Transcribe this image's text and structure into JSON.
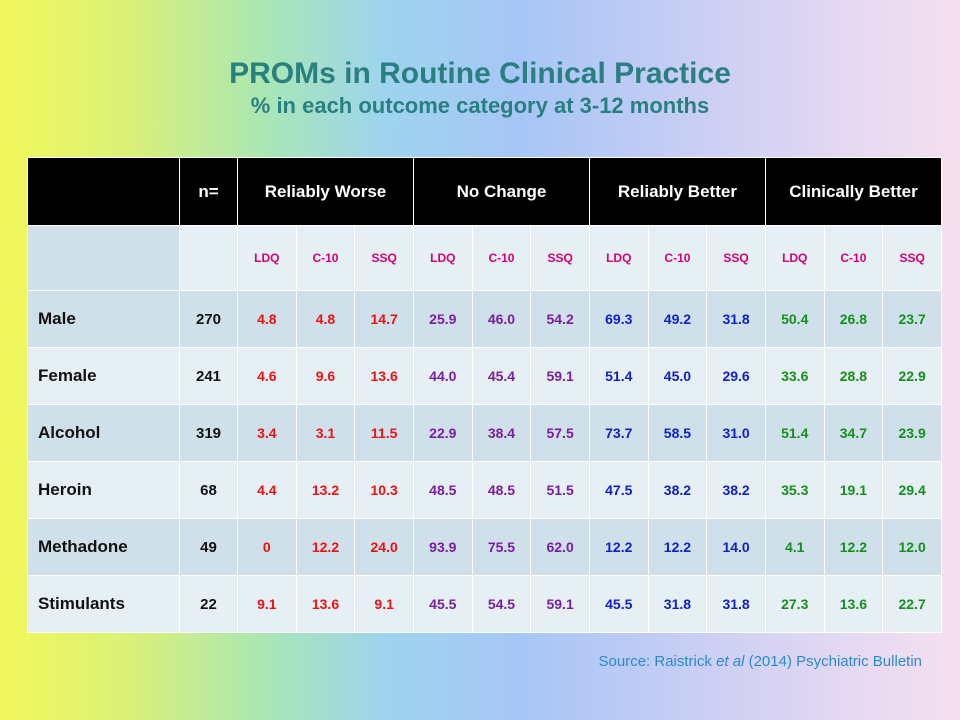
{
  "title": "PROMs in Routine Clinical Practice",
  "subtitle": "% in each outcome category at 3-12 months",
  "table": {
    "n_header": "n=",
    "groups": [
      "Reliably Worse",
      "No Change",
      "Reliably Better",
      "Clinically Better"
    ],
    "measures": [
      "LDQ",
      "C-10",
      "SSQ"
    ],
    "rows": [
      {
        "label": "Male",
        "n": "270",
        "values": [
          "4.8",
          "4.8",
          "14.7",
          "25.9",
          "46.0",
          "54.2",
          "69.3",
          "49.2",
          "31.8",
          "50.4",
          "26.8",
          "23.7"
        ]
      },
      {
        "label": "Female",
        "n": "241",
        "values": [
          "4.6",
          "9.6",
          "13.6",
          "44.0",
          "45.4",
          "59.1",
          "51.4",
          "45.0",
          "29.6",
          "33.6",
          "28.8",
          "22.9"
        ]
      },
      {
        "label": "Alcohol",
        "n": "319",
        "values": [
          "3.4",
          "3.1",
          "11.5",
          "22.9",
          "38.4",
          "57.5",
          "73.7",
          "58.5",
          "31.0",
          "51.4",
          "34.7",
          "23.9"
        ]
      },
      {
        "label": "Heroin",
        "n": "68",
        "values": [
          "4.4",
          "13.2",
          "10.3",
          "48.5",
          "48.5",
          "51.5",
          "47.5",
          "38.2",
          "38.2",
          "35.3",
          "19.1",
          "29.4"
        ]
      },
      {
        "label": "Methadone",
        "n": "49",
        "values": [
          "0",
          "12.2",
          "24.0",
          "93.9",
          "75.5",
          "62.0",
          "12.2",
          "12.2",
          "14.0",
          "4.1",
          "12.2",
          "12.0"
        ]
      },
      {
        "label": "Stimulants",
        "n": "22",
        "values": [
          "9.1",
          "13.6",
          "9.1",
          "45.5",
          "54.5",
          "59.1",
          "45.5",
          "31.8",
          "31.8",
          "27.3",
          "13.6",
          "22.7"
        ]
      }
    ]
  },
  "source": {
    "prefix": "Source: Raistrick ",
    "italic": "et al",
    "suffix": " (2014) Psychiatric Bulletin"
  },
  "colors": {
    "title": "#2a8080",
    "measure_header": "#d4007a",
    "reliably_worse": "#ee1111",
    "no_change": "#7a1ea0",
    "reliably_better": "#1020c8",
    "clinically_better": "#14901a",
    "source": "#2a8ad0"
  }
}
